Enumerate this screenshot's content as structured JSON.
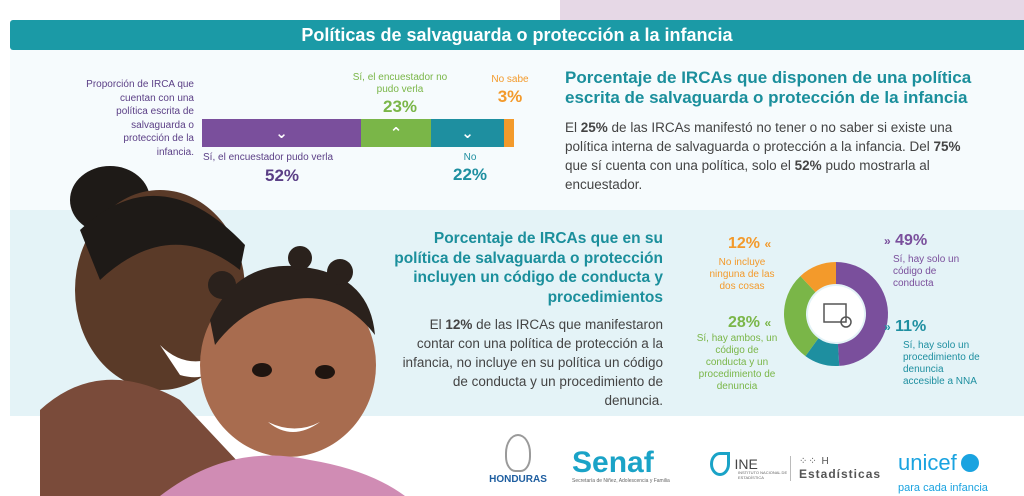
{
  "title": "Políticas de salvaguarda o protección a la infancia",
  "section_top": {
    "bar_label": "Proporción de IRCA que cuentan con una política escrita de salvaguarda o protección de la infancia.",
    "segments": [
      {
        "label": "Sí, el encuestador pudo verla",
        "pct": "52%",
        "value": 52,
        "color": "#7a4f9c",
        "arrow": "⌄"
      },
      {
        "label": "Sí, el encuestador no pudo verla",
        "pct": "23%",
        "value": 23,
        "color": "#7ab648",
        "arrow": "⌃"
      },
      {
        "label": "No",
        "pct": "22%",
        "value": 22,
        "color": "#1e8fa0",
        "arrow": "⌄"
      },
      {
        "label": "No sabe",
        "pct": "3%",
        "value": 3,
        "color": "#f39a2b",
        "arrow": ""
      }
    ],
    "heading": "Porcentaje de IRCAs que disponen de una política escrita de salvaguarda o protección de la infancia",
    "body_parts": {
      "p1": "El ",
      "b1": "25%",
      "p2": " de las IRCAs manifestó no tener o no saber si existe una política interna de salvaguarda o protección a la infancia. Del ",
      "b2": "75%",
      "p3": " que sí cuenta con una política, solo el ",
      "b3": "52%",
      "p4": " pudo mostrarla al encuestador."
    }
  },
  "section_mid": {
    "heading": "Porcentaje de IRCAs que en su política de salvaguarda o protección incluyen un código de conducta y procedimientos",
    "body_parts": {
      "p1": "El ",
      "b1": "12%",
      "p2": " de las IRCAs que manifestaron contar con una política de protección a la infancia, no incluye en su política un código de conducta y un procedimiento de denuncia."
    }
  },
  "chart_data": {
    "type": "pie",
    "series": [
      {
        "name": "Sí, hay solo un código de conducta",
        "value": 49,
        "pct": "49%",
        "color": "#7a4f9c"
      },
      {
        "name": "Sí, hay solo un procedimiento de denuncia accesible a NNA",
        "value": 11,
        "pct": "11%",
        "color": "#1e8fa0"
      },
      {
        "name": "Sí, hay ambos, un código de conducta y un procedimiento de denuncia",
        "value": 28,
        "pct": "28%",
        "color": "#7ab648"
      },
      {
        "name": "No incluye ninguna de las dos cosas",
        "value": 12,
        "pct": "12%",
        "color": "#f39a2b"
      }
    ]
  },
  "icons": {
    "chevron_down": "⌄",
    "chevron_up": "⌃",
    "arrow_left": "«",
    "arrow_right": "»"
  },
  "footer": {
    "honduras": "HONDURAS",
    "senaf": "Senaf",
    "senaf_sub": "Secretaría de Niñez, Adolescencia y Familia",
    "ine": "INE",
    "ine_sub": "INSTITUTO NACIONAL DE ESTADÍSTICA",
    "estadisticas": "Estadísticas",
    "unicef": "unicef",
    "unicef_sub": "para cada infancia"
  }
}
